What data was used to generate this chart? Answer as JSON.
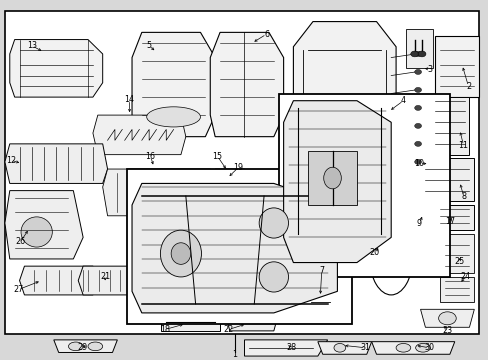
{
  "background_color": "#d8d8d8",
  "border_color": "#000000",
  "white_bg": "#ffffff"
}
